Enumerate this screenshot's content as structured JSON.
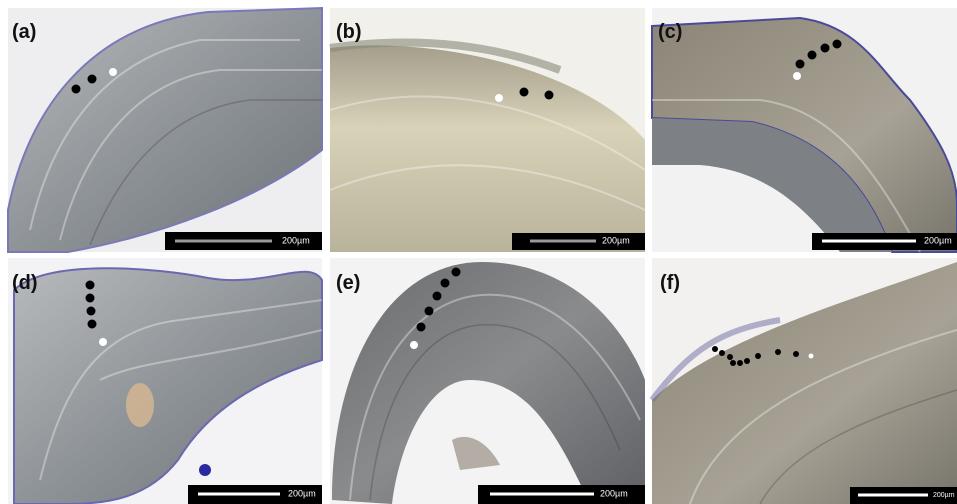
{
  "panels": [
    {
      "label": "(a)",
      "scale_label": "200µm"
    },
    {
      "label": "(b)",
      "scale_label": "200µm"
    },
    {
      "label": "(c)",
      "scale_label": "200µm"
    },
    {
      "label": "(d)",
      "scale_label": "200µm"
    },
    {
      "label": "(e)",
      "scale_label": "200µm"
    },
    {
      "label": "(f)",
      "scale_label": "200µm"
    }
  ]
}
